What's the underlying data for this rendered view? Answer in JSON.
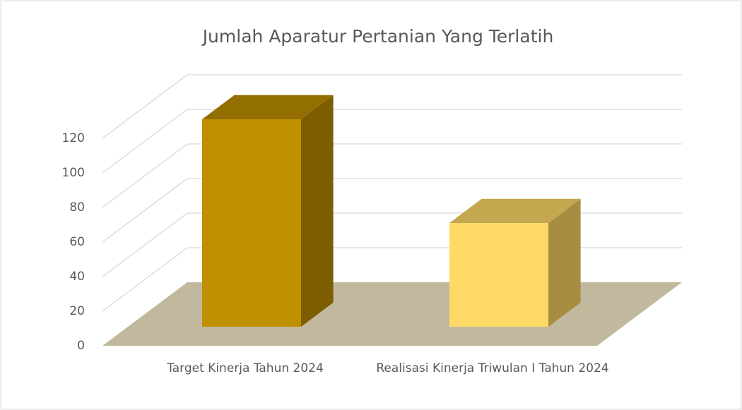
{
  "chart_data": {
    "type": "bar3d",
    "title": "Jumlah Aparatur Pertanian Yang Terlatih",
    "categories": [
      "Target Kinerja Tahun 2024",
      "Realisasi Kinerja Triwulan I Tahun 2024"
    ],
    "values": [
      120,
      60
    ],
    "colors": [
      "#bf8f00",
      "#ffd966"
    ],
    "ylim": [
      0,
      120
    ],
    "yticks": [
      0,
      20,
      40,
      60,
      80,
      100,
      120
    ],
    "grid": true
  }
}
